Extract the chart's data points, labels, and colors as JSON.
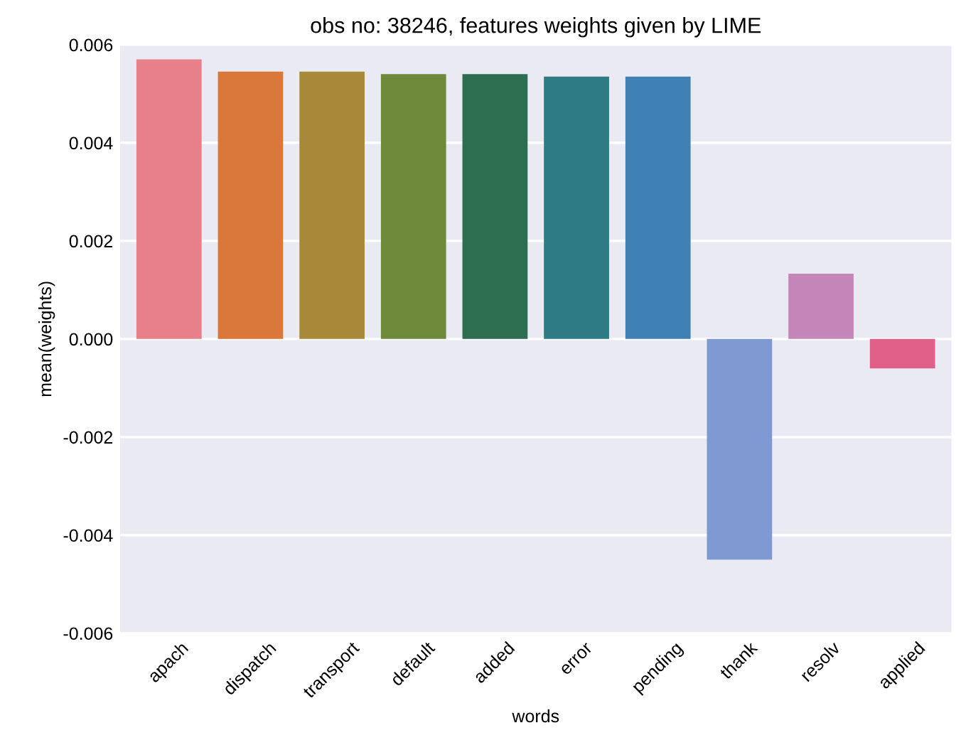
{
  "chart_data": {
    "type": "bar",
    "title": "obs no: 38246, features weights given by LIME",
    "xlabel": "words",
    "ylabel": "mean(weights)",
    "categories": [
      "apach",
      "dispatch",
      "transport",
      "default",
      "added",
      "error",
      "pending",
      "thank",
      "resolv",
      "applied"
    ],
    "values": [
      0.0057,
      0.00545,
      0.00545,
      0.0054,
      0.0054,
      0.00535,
      0.00535,
      -0.0045,
      0.00133,
      -0.0006
    ],
    "colors": [
      "#e8808a",
      "#d9783a",
      "#a8893a",
      "#6e8a3a",
      "#2e6e50",
      "#2e7a85",
      "#3f80b5",
      "#7f9ad3",
      "#c485b8",
      "#e0608a"
    ],
    "ylim": [
      -0.006,
      0.006
    ],
    "yticks": [
      {
        "value": -0.006,
        "label": "-0.006"
      },
      {
        "value": -0.004,
        "label": "-0.004"
      },
      {
        "value": -0.002,
        "label": "-0.002"
      },
      {
        "value": 0,
        "label": "0.000"
      },
      {
        "value": 0.002,
        "label": "0.002"
      },
      {
        "value": 0.004,
        "label": "0.004"
      },
      {
        "value": 0.006,
        "label": "0.006"
      }
    ],
    "grid": "y"
  }
}
